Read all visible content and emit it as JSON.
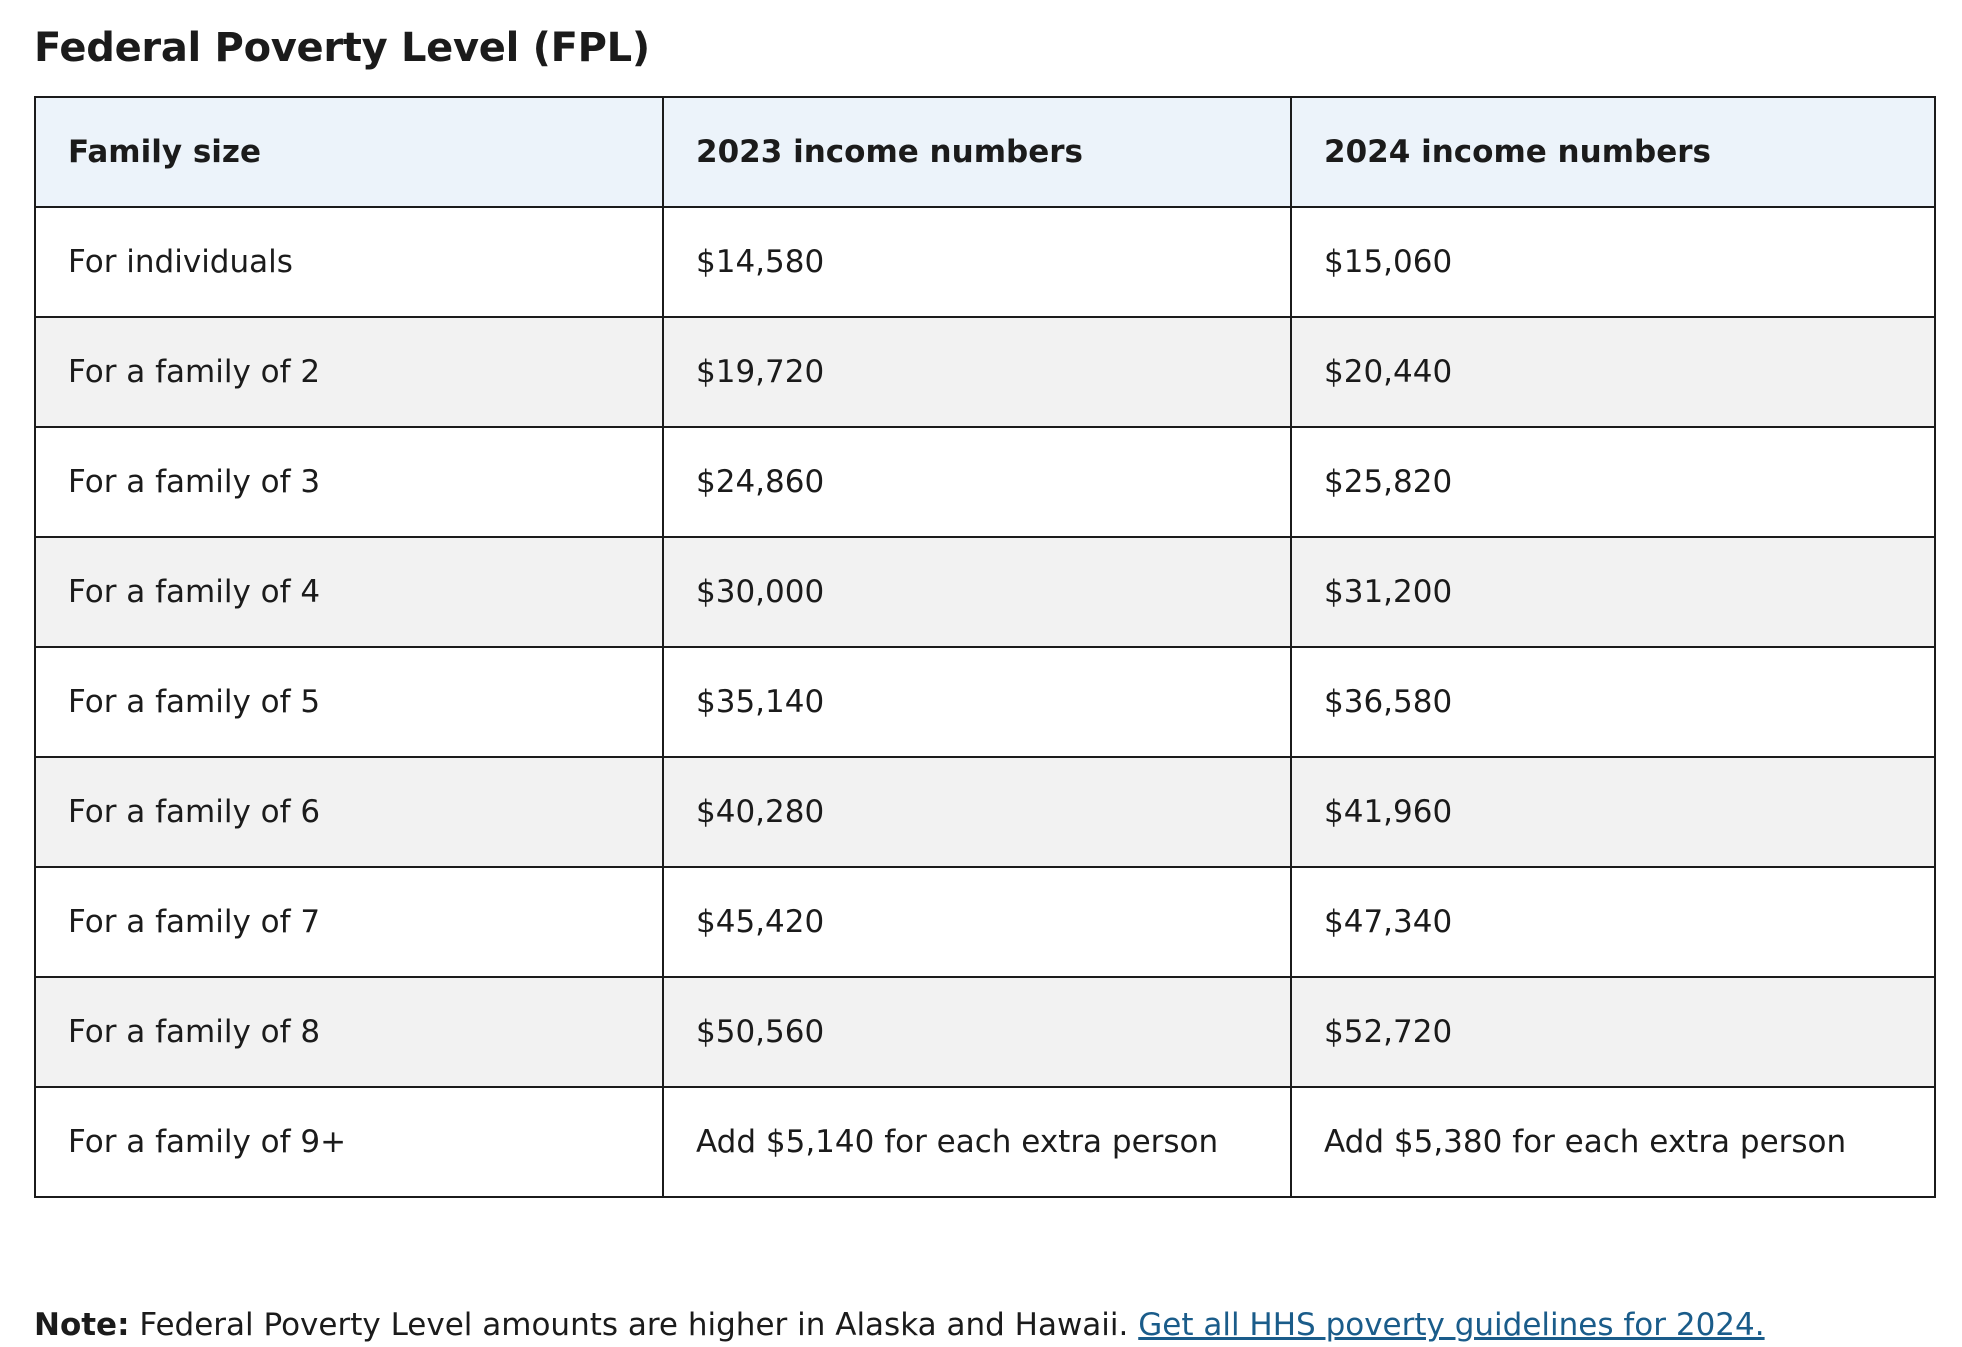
{
  "title": "Federal Poverty Level (FPL)",
  "table": {
    "headers": [
      "Family size",
      "2023 income numbers",
      "2024 income numbers"
    ],
    "rows": [
      [
        "For individuals",
        "$14,580",
        "$15,060"
      ],
      [
        "For a family of 2",
        "$19,720",
        "$20,440"
      ],
      [
        "For a family of 3",
        "$24,860",
        "$25,820"
      ],
      [
        "For a family of 4",
        "$30,000",
        "$31,200"
      ],
      [
        "For a family of 5",
        "$35,140",
        "$36,580"
      ],
      [
        "For a family of 6",
        "$40,280",
        "$41,960"
      ],
      [
        "For a family of 7",
        "$45,420",
        "$47,340"
      ],
      [
        "For a family of 8",
        "$50,560",
        "$52,720"
      ],
      [
        "For a family of 9+",
        "Add $5,140 for each extra person",
        "Add $5,380 for each extra person"
      ]
    ]
  },
  "note": {
    "label": "Note:",
    "text": " Federal Poverty Level amounts are higher in Alaska and Hawaii. ",
    "link_text": "Get all HHS poverty guidelines for 2024."
  },
  "colors": {
    "header_bg": "#ecf3fa",
    "stripe_bg": "#f2f2f2",
    "border": "#1b1b1b",
    "link": "#1a5c8a"
  }
}
